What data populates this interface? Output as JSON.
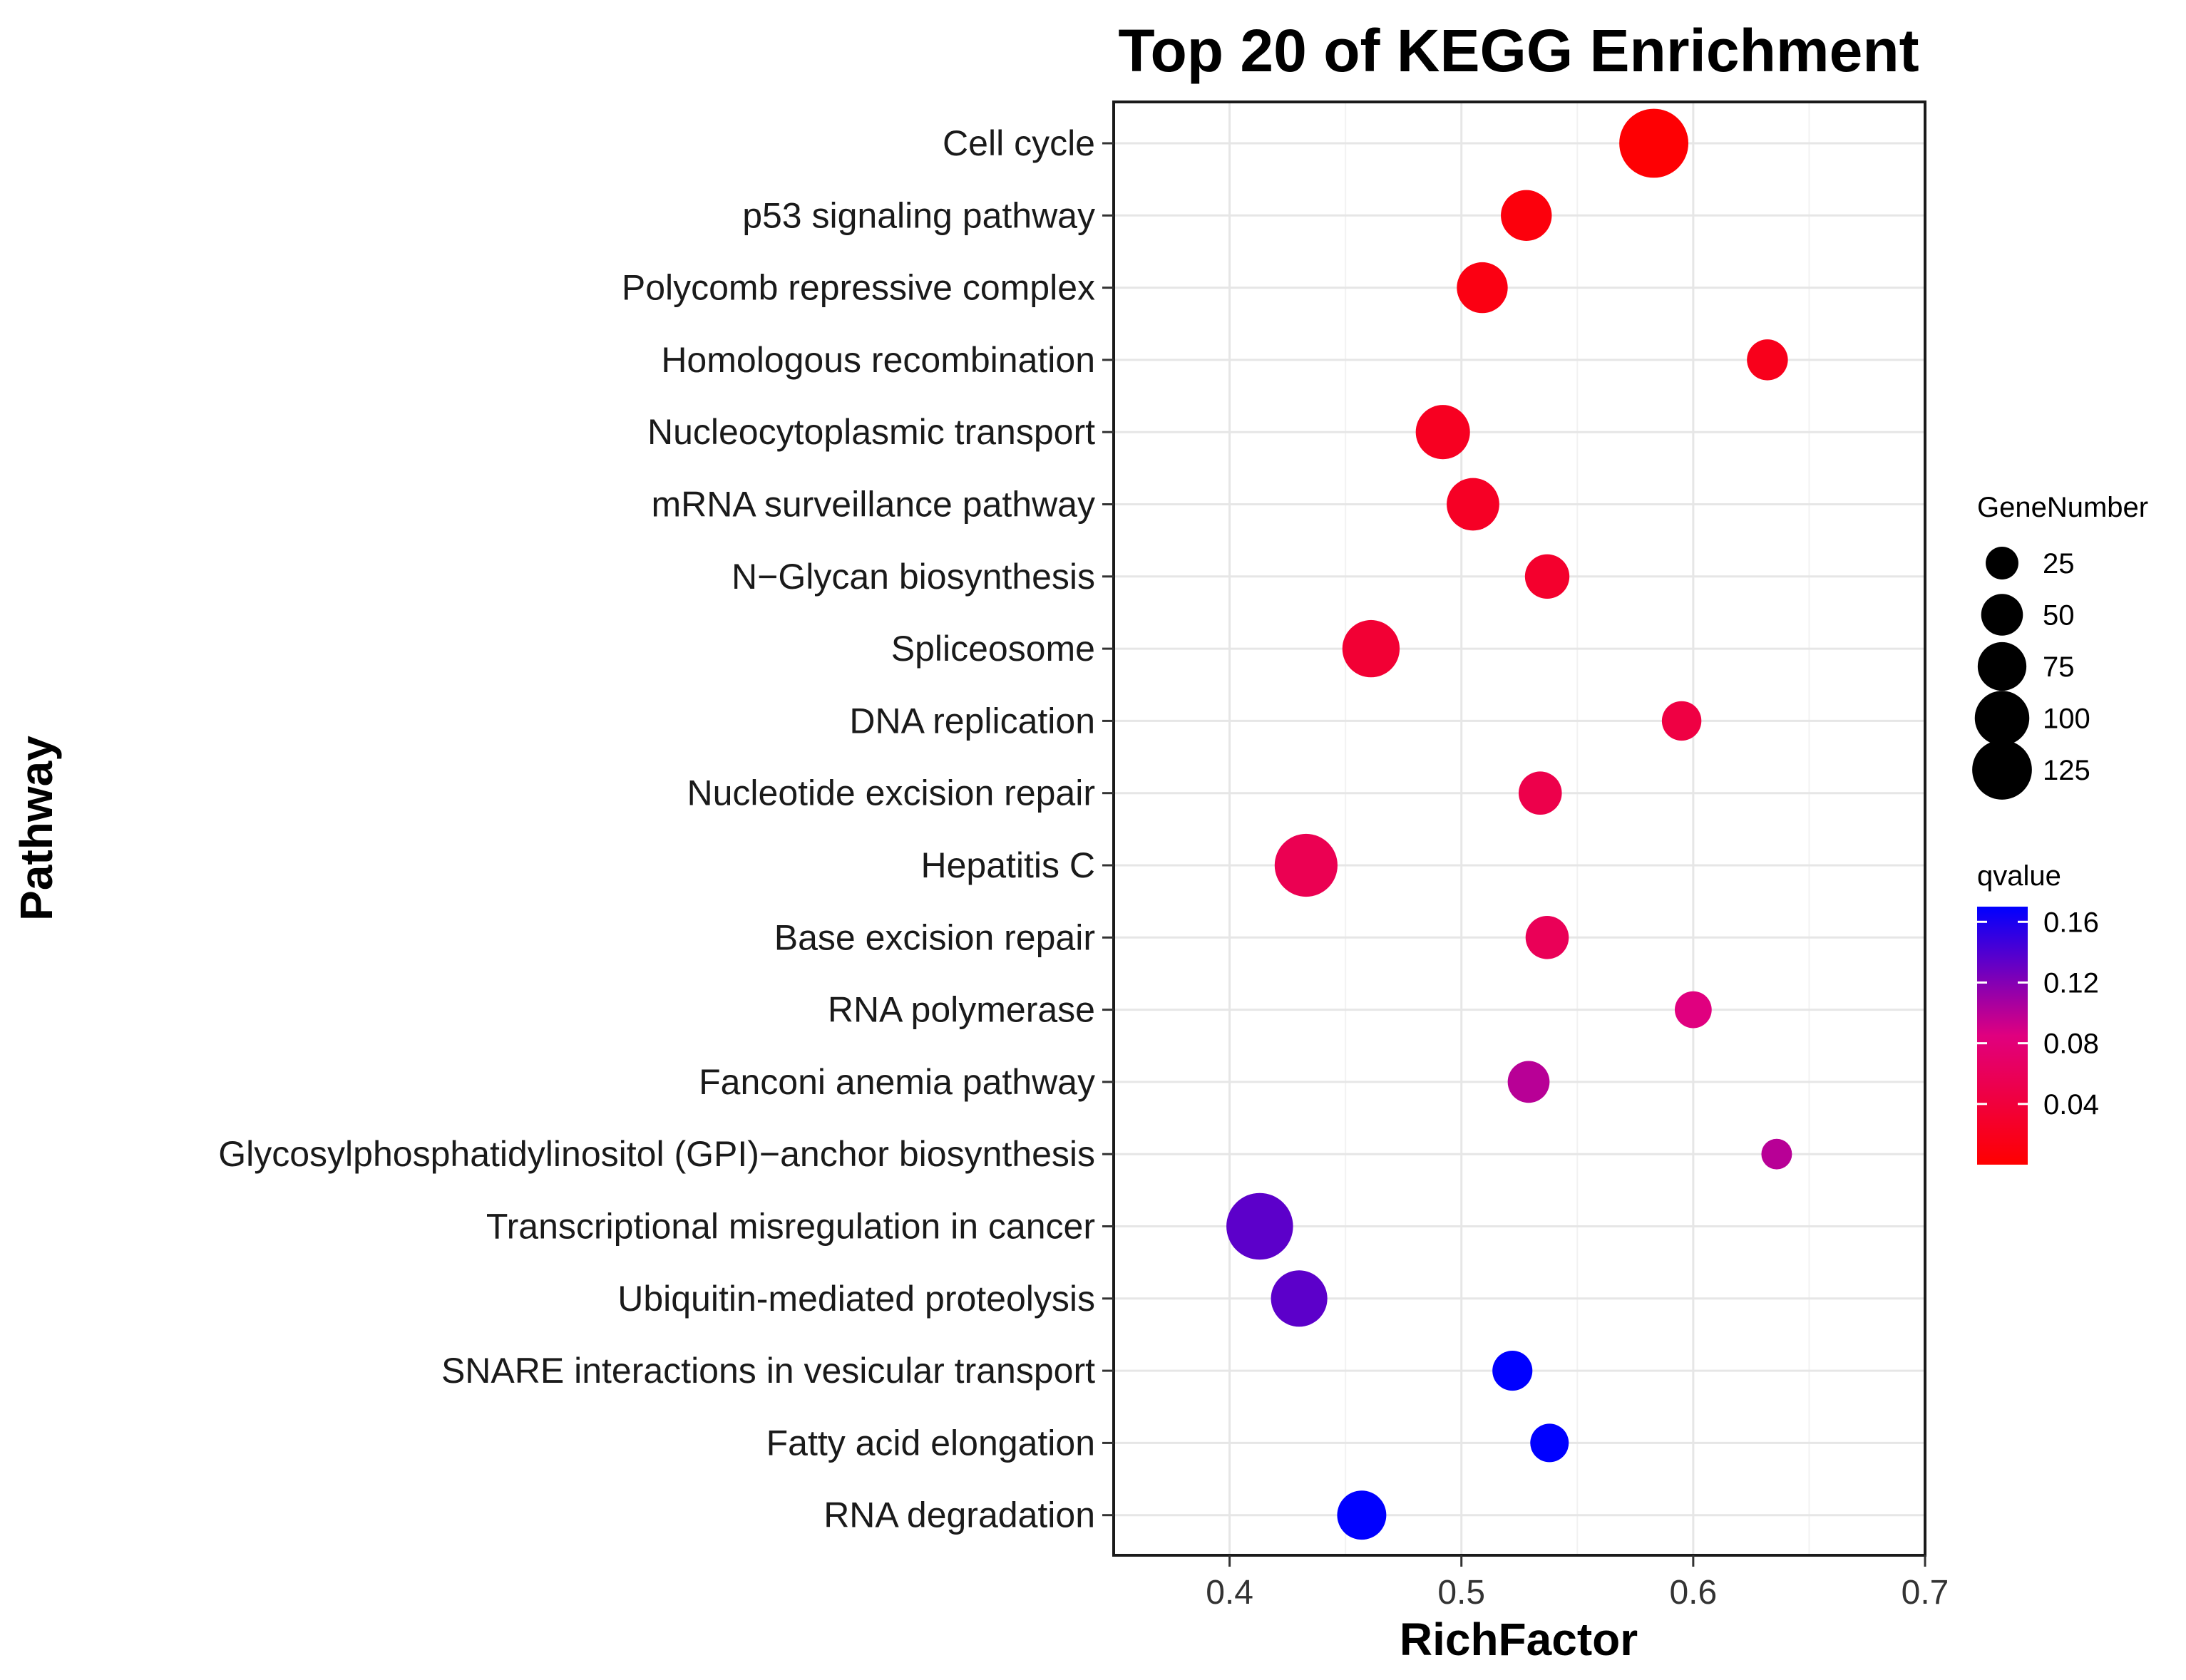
{
  "chart_data": {
    "type": "scatter",
    "title": "Top 20 of KEGG Enrichment",
    "xlabel": "RichFactor",
    "ylabel": "Pathway",
    "xlim": [
      0.35,
      0.7
    ],
    "xticks": [
      0.4,
      0.5,
      0.6,
      0.7
    ],
    "xtick_labels": [
      "0.4",
      "0.5",
      "0.6",
      "0.7"
    ],
    "grid": true,
    "categories": [
      "Cell cycle",
      "p53 signaling pathway",
      "Polycomb repressive complex",
      "Homologous recombination",
      "Nucleocytoplasmic transport",
      "mRNA surveillance pathway",
      "N−Glycan biosynthesis",
      "Spliceosome",
      "DNA replication",
      "Nucleotide excision repair",
      "Hepatitis C",
      "Base excision repair",
      "RNA polymerase",
      "Fanconi anemia pathway",
      "Glycosylphosphatidylinositol (GPI)−anchor biosynthesis",
      "Transcriptional misregulation in cancer",
      "Ubiquitin-mediated proteolysis",
      "SNARE interactions in vesicular transport",
      "Fatty acid elongation",
      "RNA degradation"
    ],
    "points": [
      {
        "pathway": "Cell cycle",
        "rich_factor": 0.583,
        "gene_number": 120,
        "qvalue": 0.002
      },
      {
        "pathway": "p53 signaling pathway",
        "rich_factor": 0.528,
        "gene_number": 55,
        "qvalue": 0.008
      },
      {
        "pathway": "Polycomb repressive complex",
        "rich_factor": 0.509,
        "gene_number": 55,
        "qvalue": 0.012
      },
      {
        "pathway": "Homologous recombination",
        "rich_factor": 0.632,
        "gene_number": 30,
        "qvalue": 0.018
      },
      {
        "pathway": "Nucleocytoplasmic transport",
        "rich_factor": 0.492,
        "gene_number": 65,
        "qvalue": 0.022
      },
      {
        "pathway": "mRNA surveillance pathway",
        "rich_factor": 0.505,
        "gene_number": 60,
        "qvalue": 0.025
      },
      {
        "pathway": "N−Glycan biosynthesis",
        "rich_factor": 0.537,
        "gene_number": 38,
        "qvalue": 0.03
      },
      {
        "pathway": "Spliceosome",
        "rich_factor": 0.461,
        "gene_number": 75,
        "qvalue": 0.035
      },
      {
        "pathway": "DNA replication",
        "rich_factor": 0.595,
        "gene_number": 27,
        "qvalue": 0.045
      },
      {
        "pathway": "Nucleotide excision repair",
        "rich_factor": 0.534,
        "gene_number": 35,
        "qvalue": 0.05
      },
      {
        "pathway": "Hepatitis C",
        "rich_factor": 0.433,
        "gene_number": 95,
        "qvalue": 0.055
      },
      {
        "pathway": "Base excision repair",
        "rich_factor": 0.537,
        "gene_number": 35,
        "qvalue": 0.058
      },
      {
        "pathway": "RNA polymerase",
        "rich_factor": 0.6,
        "gene_number": 22,
        "qvalue": 0.085
      },
      {
        "pathway": "Fanconi anemia pathway",
        "rich_factor": 0.529,
        "gene_number": 32,
        "qvalue": 0.1
      },
      {
        "pathway": "Glycosylphosphatidylinositol (GPI)−anchor biosynthesis",
        "rich_factor": 0.636,
        "gene_number": 12,
        "qvalue": 0.1
      },
      {
        "pathway": "Transcriptional misregulation in cancer",
        "rich_factor": 0.413,
        "gene_number": 110,
        "qvalue": 0.135
      },
      {
        "pathway": "Ubiquitin-mediated proteolysis",
        "rich_factor": 0.43,
        "gene_number": 72,
        "qvalue": 0.135
      },
      {
        "pathway": "SNARE interactions in vesicular transport",
        "rich_factor": 0.522,
        "gene_number": 28,
        "qvalue": 0.17
      },
      {
        "pathway": "Fatty acid elongation",
        "rich_factor": 0.538,
        "gene_number": 25,
        "qvalue": 0.17
      },
      {
        "pathway": "RNA degradation",
        "rich_factor": 0.457,
        "gene_number": 50,
        "qvalue": 0.17
      }
    ],
    "size_legend": {
      "title": "GeneNumber",
      "values": [
        25,
        50,
        75,
        100,
        125
      ],
      "labels": [
        "25",
        "50",
        "75",
        "100",
        "125"
      ]
    },
    "color_legend": {
      "title": "qvalue",
      "range": [
        0.0,
        0.17
      ],
      "ticks": [
        0.04,
        0.08,
        0.12,
        0.16
      ],
      "tick_labels": [
        "0.04",
        "0.08",
        "0.12",
        "0.16"
      ],
      "low_color": "#ff0000",
      "high_color": "#0000ff"
    }
  }
}
